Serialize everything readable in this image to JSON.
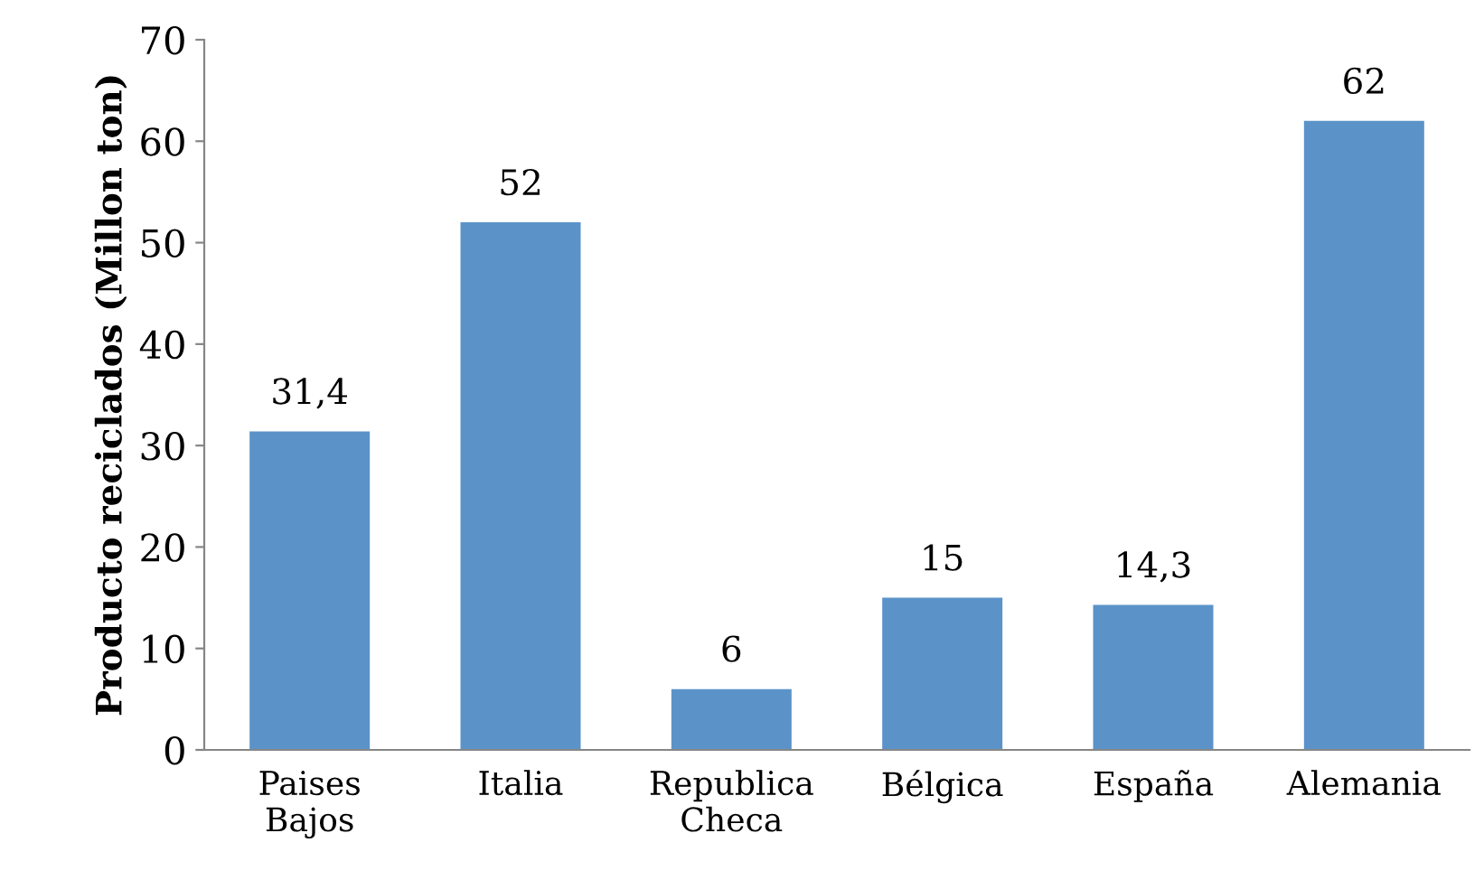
{
  "chart_data": {
    "type": "bar",
    "ylabel": "Producto reciclados (Millon ton)",
    "categories": [
      "Paises Bajos",
      "Italia",
      "Republica Checa",
      "Bélgica",
      "España",
      "Alemania"
    ],
    "values": [
      31.4,
      52,
      6,
      15,
      14.3,
      62
    ],
    "value_labels": [
      "31,4",
      "52",
      "6",
      "15",
      "14,3",
      "62"
    ],
    "color": "#5b93c9",
    "ylim": [
      0,
      70
    ],
    "yticks": [
      0,
      10,
      20,
      30,
      40,
      50,
      60,
      70
    ],
    "grid": false,
    "legend": false
  }
}
